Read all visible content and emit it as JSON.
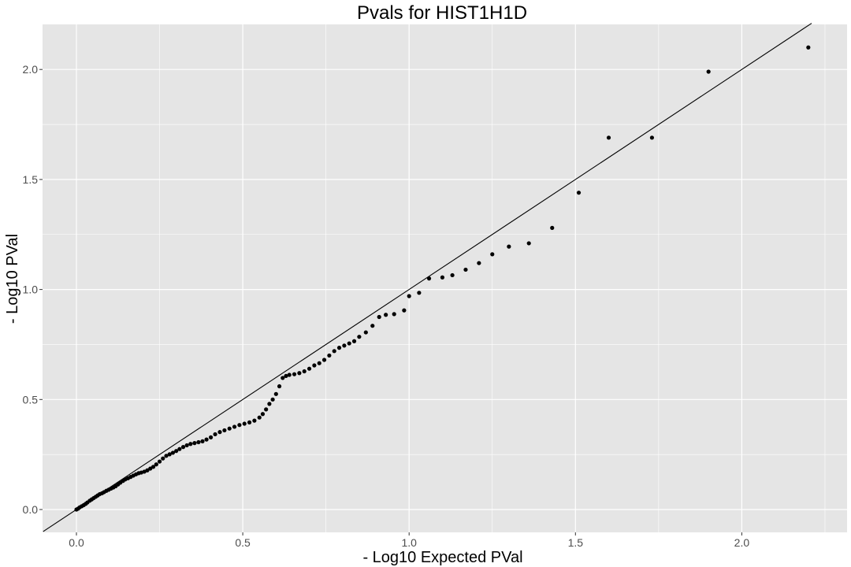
{
  "chart_data": {
    "type": "scatter",
    "title": "Pvals for HIST1H1D",
    "xlabel": "- Log10 Expected PVal",
    "ylabel": "- Log10 PVal",
    "xlim": [
      -0.1,
      2.32
    ],
    "ylim": [
      -0.1,
      2.21
    ],
    "x_ticks": [
      0.0,
      0.5,
      1.0,
      1.5,
      2.0
    ],
    "x_tick_labels": [
      "0.0",
      "0.5",
      "1.0",
      "1.5",
      "2.0"
    ],
    "y_ticks": [
      0.0,
      0.5,
      1.0,
      1.5,
      2.0
    ],
    "y_tick_labels": [
      "0.0",
      "0.5",
      "1.0",
      "1.5",
      "2.0"
    ],
    "grid": true,
    "background": "#e5e5e5",
    "grid_color": "#ffffff",
    "point_color": "#000000",
    "reference_line": {
      "slope": 1,
      "intercept": 0,
      "color": "#000000"
    },
    "points": [
      [
        0.0,
        0.0
      ],
      [
        0.005,
        0.004
      ],
      [
        0.01,
        0.01
      ],
      [
        0.016,
        0.015
      ],
      [
        0.022,
        0.02
      ],
      [
        0.028,
        0.026
      ],
      [
        0.033,
        0.032
      ],
      [
        0.04,
        0.04
      ],
      [
        0.046,
        0.046
      ],
      [
        0.052,
        0.052
      ],
      [
        0.058,
        0.058
      ],
      [
        0.064,
        0.064
      ],
      [
        0.07,
        0.07
      ],
      [
        0.077,
        0.074
      ],
      [
        0.083,
        0.079
      ],
      [
        0.09,
        0.085
      ],
      [
        0.097,
        0.09
      ],
      [
        0.104,
        0.095
      ],
      [
        0.111,
        0.1
      ],
      [
        0.118,
        0.106
      ],
      [
        0.125,
        0.114
      ],
      [
        0.132,
        0.122
      ],
      [
        0.14,
        0.13
      ],
      [
        0.147,
        0.137
      ],
      [
        0.155,
        0.142
      ],
      [
        0.163,
        0.148
      ],
      [
        0.171,
        0.154
      ],
      [
        0.179,
        0.16
      ],
      [
        0.187,
        0.165
      ],
      [
        0.195,
        0.168
      ],
      [
        0.204,
        0.172
      ],
      [
        0.213,
        0.178
      ],
      [
        0.222,
        0.186
      ],
      [
        0.231,
        0.194
      ],
      [
        0.24,
        0.205
      ],
      [
        0.25,
        0.218
      ],
      [
        0.26,
        0.232
      ],
      [
        0.27,
        0.244
      ],
      [
        0.28,
        0.251
      ],
      [
        0.29,
        0.258
      ],
      [
        0.3,
        0.266
      ],
      [
        0.31,
        0.275
      ],
      [
        0.321,
        0.284
      ],
      [
        0.332,
        0.292
      ],
      [
        0.343,
        0.298
      ],
      [
        0.355,
        0.302
      ],
      [
        0.367,
        0.306
      ],
      [
        0.379,
        0.31
      ],
      [
        0.391,
        0.318
      ],
      [
        0.404,
        0.328
      ],
      [
        0.417,
        0.342
      ],
      [
        0.431,
        0.352
      ],
      [
        0.445,
        0.36
      ],
      [
        0.46,
        0.368
      ],
      [
        0.475,
        0.376
      ],
      [
        0.49,
        0.384
      ],
      [
        0.505,
        0.39
      ],
      [
        0.52,
        0.396
      ],
      [
        0.535,
        0.404
      ],
      [
        0.55,
        0.418
      ],
      [
        0.56,
        0.434
      ],
      [
        0.57,
        0.455
      ],
      [
        0.58,
        0.48
      ],
      [
        0.59,
        0.5
      ],
      [
        0.6,
        0.525
      ],
      [
        0.61,
        0.56
      ],
      [
        0.62,
        0.598
      ],
      [
        0.63,
        0.607
      ],
      [
        0.64,
        0.612
      ],
      [
        0.655,
        0.615
      ],
      [
        0.67,
        0.62
      ],
      [
        0.685,
        0.628
      ],
      [
        0.7,
        0.64
      ],
      [
        0.715,
        0.655
      ],
      [
        0.73,
        0.665
      ],
      [
        0.745,
        0.68
      ],
      [
        0.76,
        0.7
      ],
      [
        0.775,
        0.72
      ],
      [
        0.79,
        0.735
      ],
      [
        0.805,
        0.745
      ],
      [
        0.82,
        0.755
      ],
      [
        0.835,
        0.765
      ],
      [
        0.85,
        0.785
      ],
      [
        0.87,
        0.805
      ],
      [
        0.89,
        0.835
      ],
      [
        0.91,
        0.875
      ],
      [
        0.93,
        0.885
      ],
      [
        0.955,
        0.888
      ],
      [
        0.985,
        0.905
      ],
      [
        1.0,
        0.97
      ],
      [
        1.03,
        0.985
      ],
      [
        1.06,
        1.05
      ],
      [
        1.1,
        1.055
      ],
      [
        1.13,
        1.065
      ],
      [
        1.17,
        1.09
      ],
      [
        1.21,
        1.12
      ],
      [
        1.25,
        1.16
      ],
      [
        1.3,
        1.195
      ],
      [
        1.36,
        1.21
      ],
      [
        1.43,
        1.28
      ],
      [
        1.51,
        1.44
      ],
      [
        1.6,
        1.69
      ],
      [
        1.73,
        1.69
      ],
      [
        1.9,
        1.99
      ],
      [
        2.2,
        2.1
      ]
    ]
  }
}
